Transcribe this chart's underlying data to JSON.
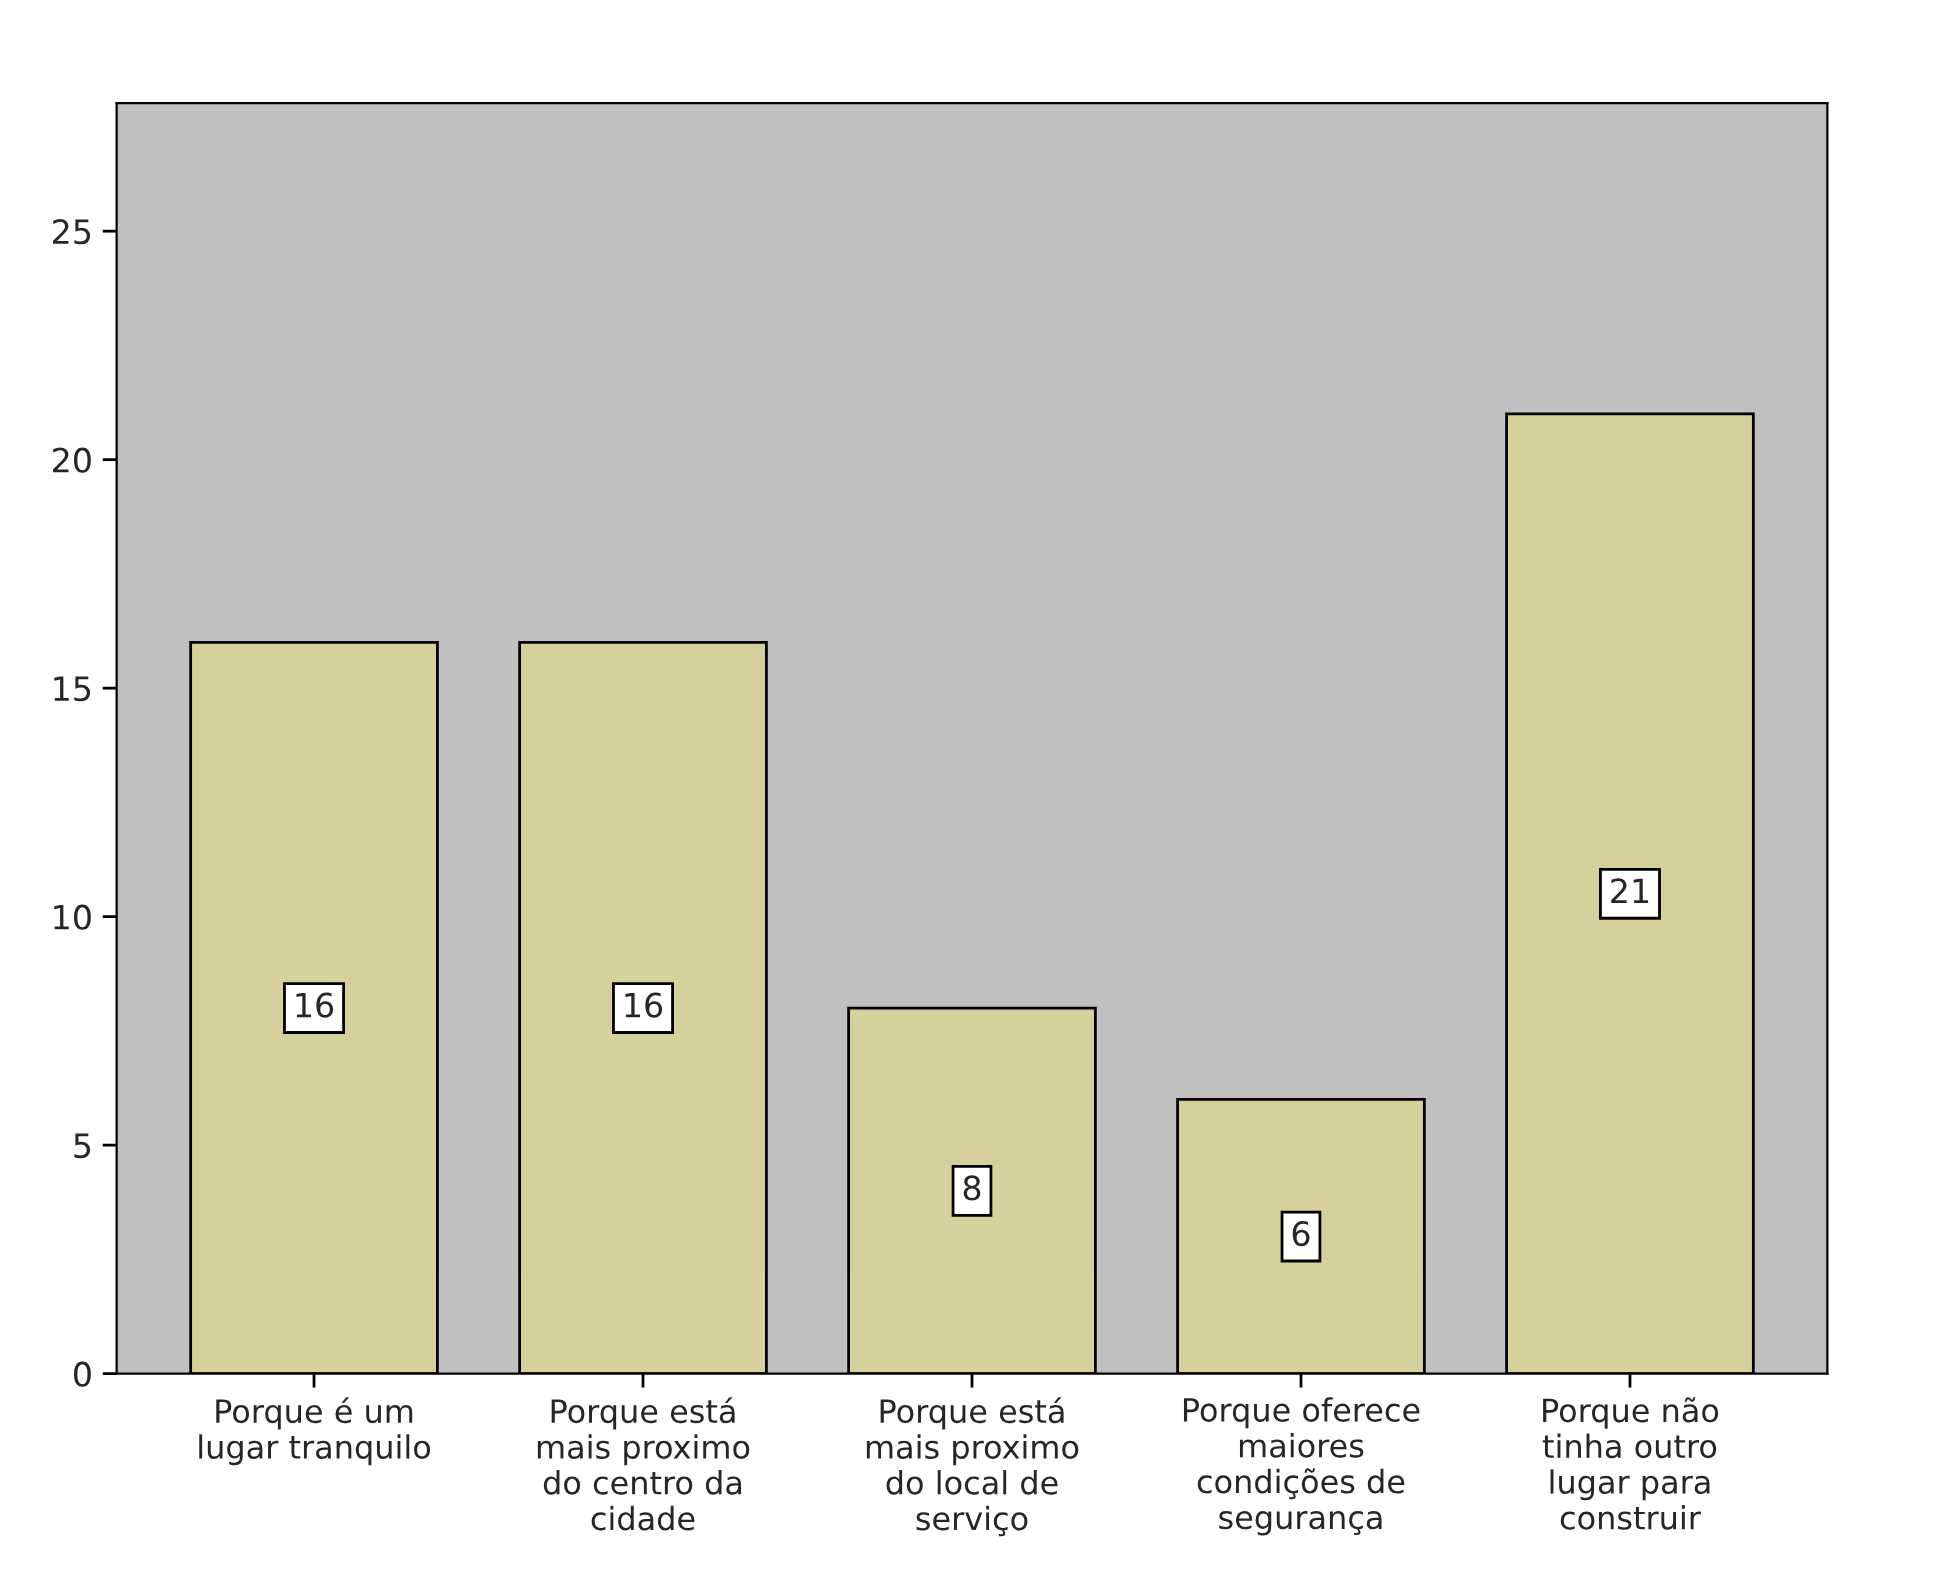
{
  "chart_data": {
    "type": "bar",
    "categories": [
      "Porque é um\nlugar tranquilo",
      "Porque está\nmais proximo\ndo centro da\ncidade",
      "Porque está\nmais proximo\ndo local de\nserviço",
      "Porque oferece\nmaiores\ncondições de\nsegurança",
      "Porque não\ntinha outro\nlugar para\nconstruir"
    ],
    "values": [
      16,
      16,
      8,
      6,
      21
    ],
    "color": "#d6d09c",
    "ylim": [
      0,
      27.8
    ],
    "yticks": [
      0,
      5,
      10,
      15,
      20,
      25
    ],
    "data_labels": true,
    "grid": false
  }
}
